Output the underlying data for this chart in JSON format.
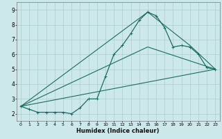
{
  "xlabel": "Humidex (Indice chaleur)",
  "bg_color": "#cce8ea",
  "grid_color": "#aacccc",
  "line_color": "#1a6b60",
  "xlim": [
    -0.5,
    23.5
  ],
  "ylim": [
    1.5,
    9.5
  ],
  "yticks": [
    2,
    3,
    4,
    5,
    6,
    7,
    8,
    9
  ],
  "xticks": [
    0,
    1,
    2,
    3,
    4,
    5,
    6,
    7,
    8,
    9,
    10,
    11,
    12,
    13,
    14,
    15,
    16,
    17,
    18,
    19,
    20,
    21,
    22,
    23
  ],
  "line1_x": [
    0,
    1,
    2,
    3,
    4,
    5,
    6,
    7,
    8,
    9,
    10,
    11,
    12,
    13,
    14,
    15,
    16,
    17,
    18,
    19,
    20,
    21,
    22,
    23
  ],
  "line1_y": [
    2.5,
    2.3,
    2.1,
    2.1,
    2.1,
    2.1,
    2.0,
    2.4,
    3.0,
    3.0,
    4.5,
    6.0,
    6.6,
    7.4,
    8.3,
    8.85,
    8.6,
    7.8,
    6.5,
    6.6,
    6.5,
    6.0,
    5.1,
    5.0
  ],
  "line2_x": [
    0,
    23
  ],
  "line2_y": [
    2.5,
    5.0
  ],
  "line3_x": [
    0,
    15,
    23
  ],
  "line3_y": [
    2.5,
    6.5,
    5.0
  ],
  "line4_x": [
    0,
    15,
    20,
    23
  ],
  "line4_y": [
    2.5,
    8.85,
    6.6,
    5.0
  ]
}
